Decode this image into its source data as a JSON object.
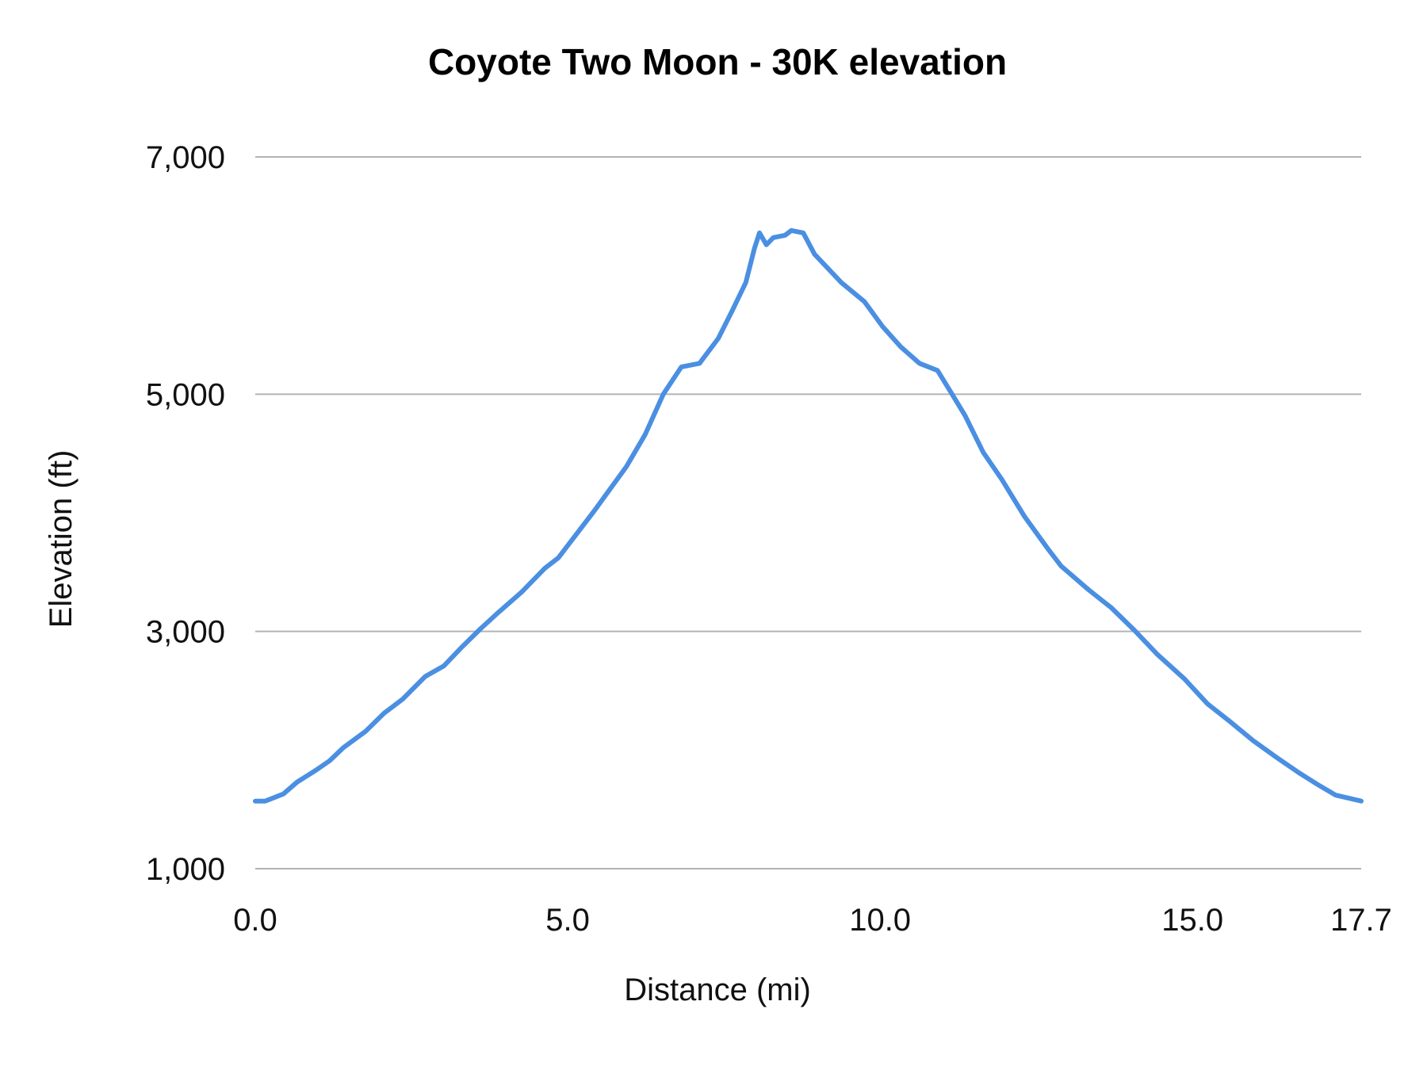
{
  "chart_data": {
    "type": "line",
    "title": "Coyote  Two Moon - 30K elevation",
    "xlabel": "Distance (mi)",
    "ylabel": "Elevation (ft)",
    "xlim": [
      0,
      17.7
    ],
    "ylim": [
      1000,
      7000
    ],
    "x_ticks": [
      "0.0",
      "5.0",
      "10.0",
      "15.0",
      "17.7"
    ],
    "x_tick_values": [
      0,
      5,
      10,
      15,
      17.7
    ],
    "y_ticks": [
      "1,000",
      "3,000",
      "5,000",
      "7,000"
    ],
    "y_tick_values": [
      1000,
      3000,
      5000,
      7000
    ],
    "grid": "horizontal",
    "legend": "none",
    "colors": {
      "line": "#4a8fe2",
      "grid": "#b3b3b3"
    },
    "series": [
      {
        "points": [
          [
            0,
            1570
          ],
          [
            0.16,
            1570
          ],
          [
            0.45,
            1630
          ],
          [
            0.67,
            1730
          ],
          [
            0.97,
            1830
          ],
          [
            1.19,
            1910
          ],
          [
            1.41,
            2020
          ],
          [
            1.77,
            2160
          ],
          [
            2.06,
            2310
          ],
          [
            2.36,
            2430
          ],
          [
            2.72,
            2620
          ],
          [
            3.02,
            2710
          ],
          [
            3.31,
            2870
          ],
          [
            3.6,
            3020
          ],
          [
            3.89,
            3160
          ],
          [
            4.26,
            3330
          ],
          [
            4.63,
            3530
          ],
          [
            4.85,
            3620
          ],
          [
            5.14,
            3820
          ],
          [
            5.43,
            4020
          ],
          [
            5.65,
            4180
          ],
          [
            5.94,
            4390
          ],
          [
            6.24,
            4660
          ],
          [
            6.53,
            5000
          ],
          [
            6.82,
            5230
          ],
          [
            7.11,
            5260
          ],
          [
            7.41,
            5470
          ],
          [
            7.63,
            5700
          ],
          [
            7.85,
            5940
          ],
          [
            7.99,
            6230
          ],
          [
            8.07,
            6360
          ],
          [
            8.18,
            6260
          ],
          [
            8.29,
            6320
          ],
          [
            8.48,
            6340
          ],
          [
            8.58,
            6380
          ],
          [
            8.77,
            6360
          ],
          [
            8.95,
            6180
          ],
          [
            9.38,
            5940
          ],
          [
            9.75,
            5780
          ],
          [
            10.04,
            5570
          ],
          [
            10.33,
            5400
          ],
          [
            10.63,
            5260
          ],
          [
            10.92,
            5200
          ],
          [
            11.14,
            5010
          ],
          [
            11.36,
            4820
          ],
          [
            11.65,
            4510
          ],
          [
            11.95,
            4280
          ],
          [
            12.31,
            3970
          ],
          [
            12.68,
            3700
          ],
          [
            12.9,
            3550
          ],
          [
            13.34,
            3350
          ],
          [
            13.7,
            3200
          ],
          [
            14.07,
            3010
          ],
          [
            14.43,
            2810
          ],
          [
            14.87,
            2600
          ],
          [
            15.24,
            2390
          ],
          [
            15.6,
            2240
          ],
          [
            15.97,
            2080
          ],
          [
            16.34,
            1940
          ],
          [
            16.7,
            1810
          ],
          [
            17.0,
            1710
          ],
          [
            17.29,
            1620
          ],
          [
            17.7,
            1570
          ]
        ]
      }
    ]
  }
}
